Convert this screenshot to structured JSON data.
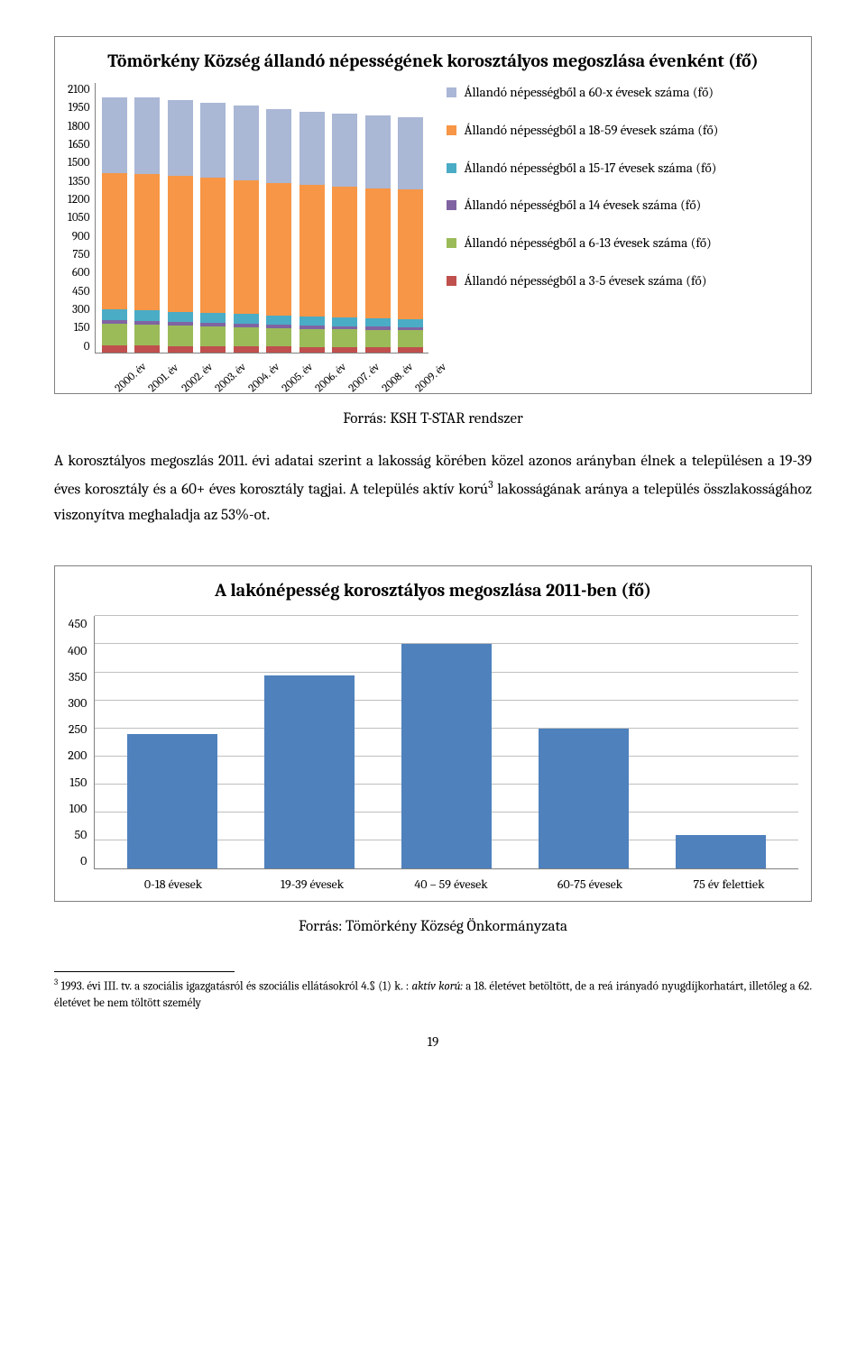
{
  "chart1": {
    "type": "stacked-bar",
    "title": "Tömörkény Község állandó népességének korosztályos megoszlása évenként (fő)",
    "y_ticks": [
      0,
      150,
      300,
      450,
      600,
      750,
      900,
      1050,
      1200,
      1350,
      1500,
      1650,
      1800,
      1950,
      2100
    ],
    "ylim_max": 2100,
    "categories": [
      "2000. év",
      "2001. év",
      "2002. év",
      "2003. év",
      "2004. év",
      "2005. év",
      "2006. év",
      "2007. év",
      "2008. év",
      "2009. év"
    ],
    "series": [
      {
        "key": "s1",
        "label": "Állandó népességből a 3-5 évesek száma (fő)",
        "color": "#c0504d"
      },
      {
        "key": "s2",
        "label": "Állandó népességből a 6-13 évesek száma (fő)",
        "color": "#9bbb59"
      },
      {
        "key": "s3",
        "label": "Állandó népességből a 14 évesek száma (fő)",
        "color": "#8064a2"
      },
      {
        "key": "s4",
        "label": "Állandó népességből a 15-17 évesek száma (fő)",
        "color": "#4bacc6"
      },
      {
        "key": "s5",
        "label": "Állandó népességből a 18-59 évesek száma (fő)",
        "color": "#f79646"
      },
      {
        "key": "s6",
        "label": "Állandó népességből a 60-x évesek száma (fő)",
        "color": "#aab7d5"
      }
    ],
    "legend_order": [
      "s6",
      "s5",
      "s4",
      "s3",
      "s2",
      "s1"
    ],
    "values": {
      "s1": [
        55,
        55,
        50,
        50,
        48,
        46,
        45,
        44,
        42,
        40
      ],
      "s2": [
        170,
        165,
        160,
        155,
        150,
        145,
        140,
        138,
        135,
        132
      ],
      "s3": [
        28,
        28,
        27,
        26,
        26,
        25,
        25,
        24,
        24,
        23
      ],
      "s4": [
        80,
        80,
        78,
        76,
        74,
        72,
        70,
        68,
        66,
        65
      ],
      "s5": [
        1060,
        1060,
        1055,
        1050,
        1040,
        1030,
        1020,
        1015,
        1010,
        1005
      ],
      "s6": [
        590,
        590,
        590,
        585,
        580,
        575,
        570,
        565,
        565,
        560
      ]
    }
  },
  "source1": "Forrás: KSH T-STAR rendszer",
  "paragraph_html": "A korosztályos megoszlás 2011. évi adatai szerint a lakosság körében közel azonos arányban élnek a településen a 19-39 éves korosztály és a 60+ éves korosztály tagjai. A település aktív korú<sup>3</sup> lakosságának aránya a település összlakosságához viszonyítva meghaladja az 53%-ot.",
  "chart2": {
    "type": "bar",
    "title": "A lakónépesség korosztályos megoszlása 2011-ben (fő)",
    "y_ticks": [
      0,
      50,
      100,
      150,
      200,
      250,
      300,
      350,
      400,
      450
    ],
    "ylim_max": 450,
    "categories": [
      "0-18 évesek",
      "19-39 évesek",
      "40 – 59 évesek",
      "60-75 évesek",
      "75 év felettiek"
    ],
    "values": [
      240,
      345,
      400,
      250,
      60
    ],
    "bar_color": "#4f81bd",
    "grid_color": "#bfbfbf"
  },
  "source2": "Forrás: Tömörkény Község Önkormányzata",
  "footnote_html": "<sup>3</sup> 1993. évi III. tv. a szociális igazgatásról és szociális ellátásokról 4.§ (1) k. : <i>aktív korú:</i> a 18. életévet betöltött, de a reá irányadó nyugdíjkorhatárt, illetőleg a 62. életévet be nem töltött személy",
  "page_number": "19"
}
